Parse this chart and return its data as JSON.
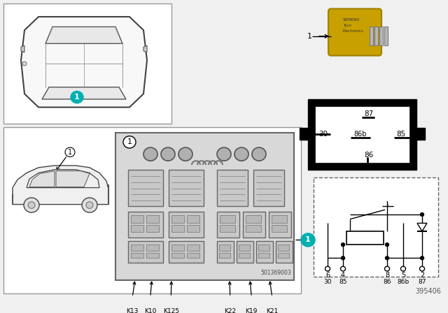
{
  "bg_color": "#f0f0f0",
  "white": "#ffffff",
  "black": "#000000",
  "cyan_color": "#00b0b0",
  "yellow_relay": "#c8a200",
  "gray_light": "#cccccc",
  "gray_med": "#999999",
  "part_number": "395406",
  "diagram_number": "501369003",
  "fuse_labels": [
    "K13",
    "K10",
    "K125",
    "K22",
    "K19",
    "K21"
  ],
  "relay_pins_box": [
    "87",
    "30",
    "86b",
    "85",
    "86"
  ],
  "circuit_pins_top": [
    "6",
    "4",
    "8",
    "5",
    "2"
  ],
  "circuit_pins_bot": [
    "30",
    "85",
    "86",
    "86b",
    "87"
  ]
}
